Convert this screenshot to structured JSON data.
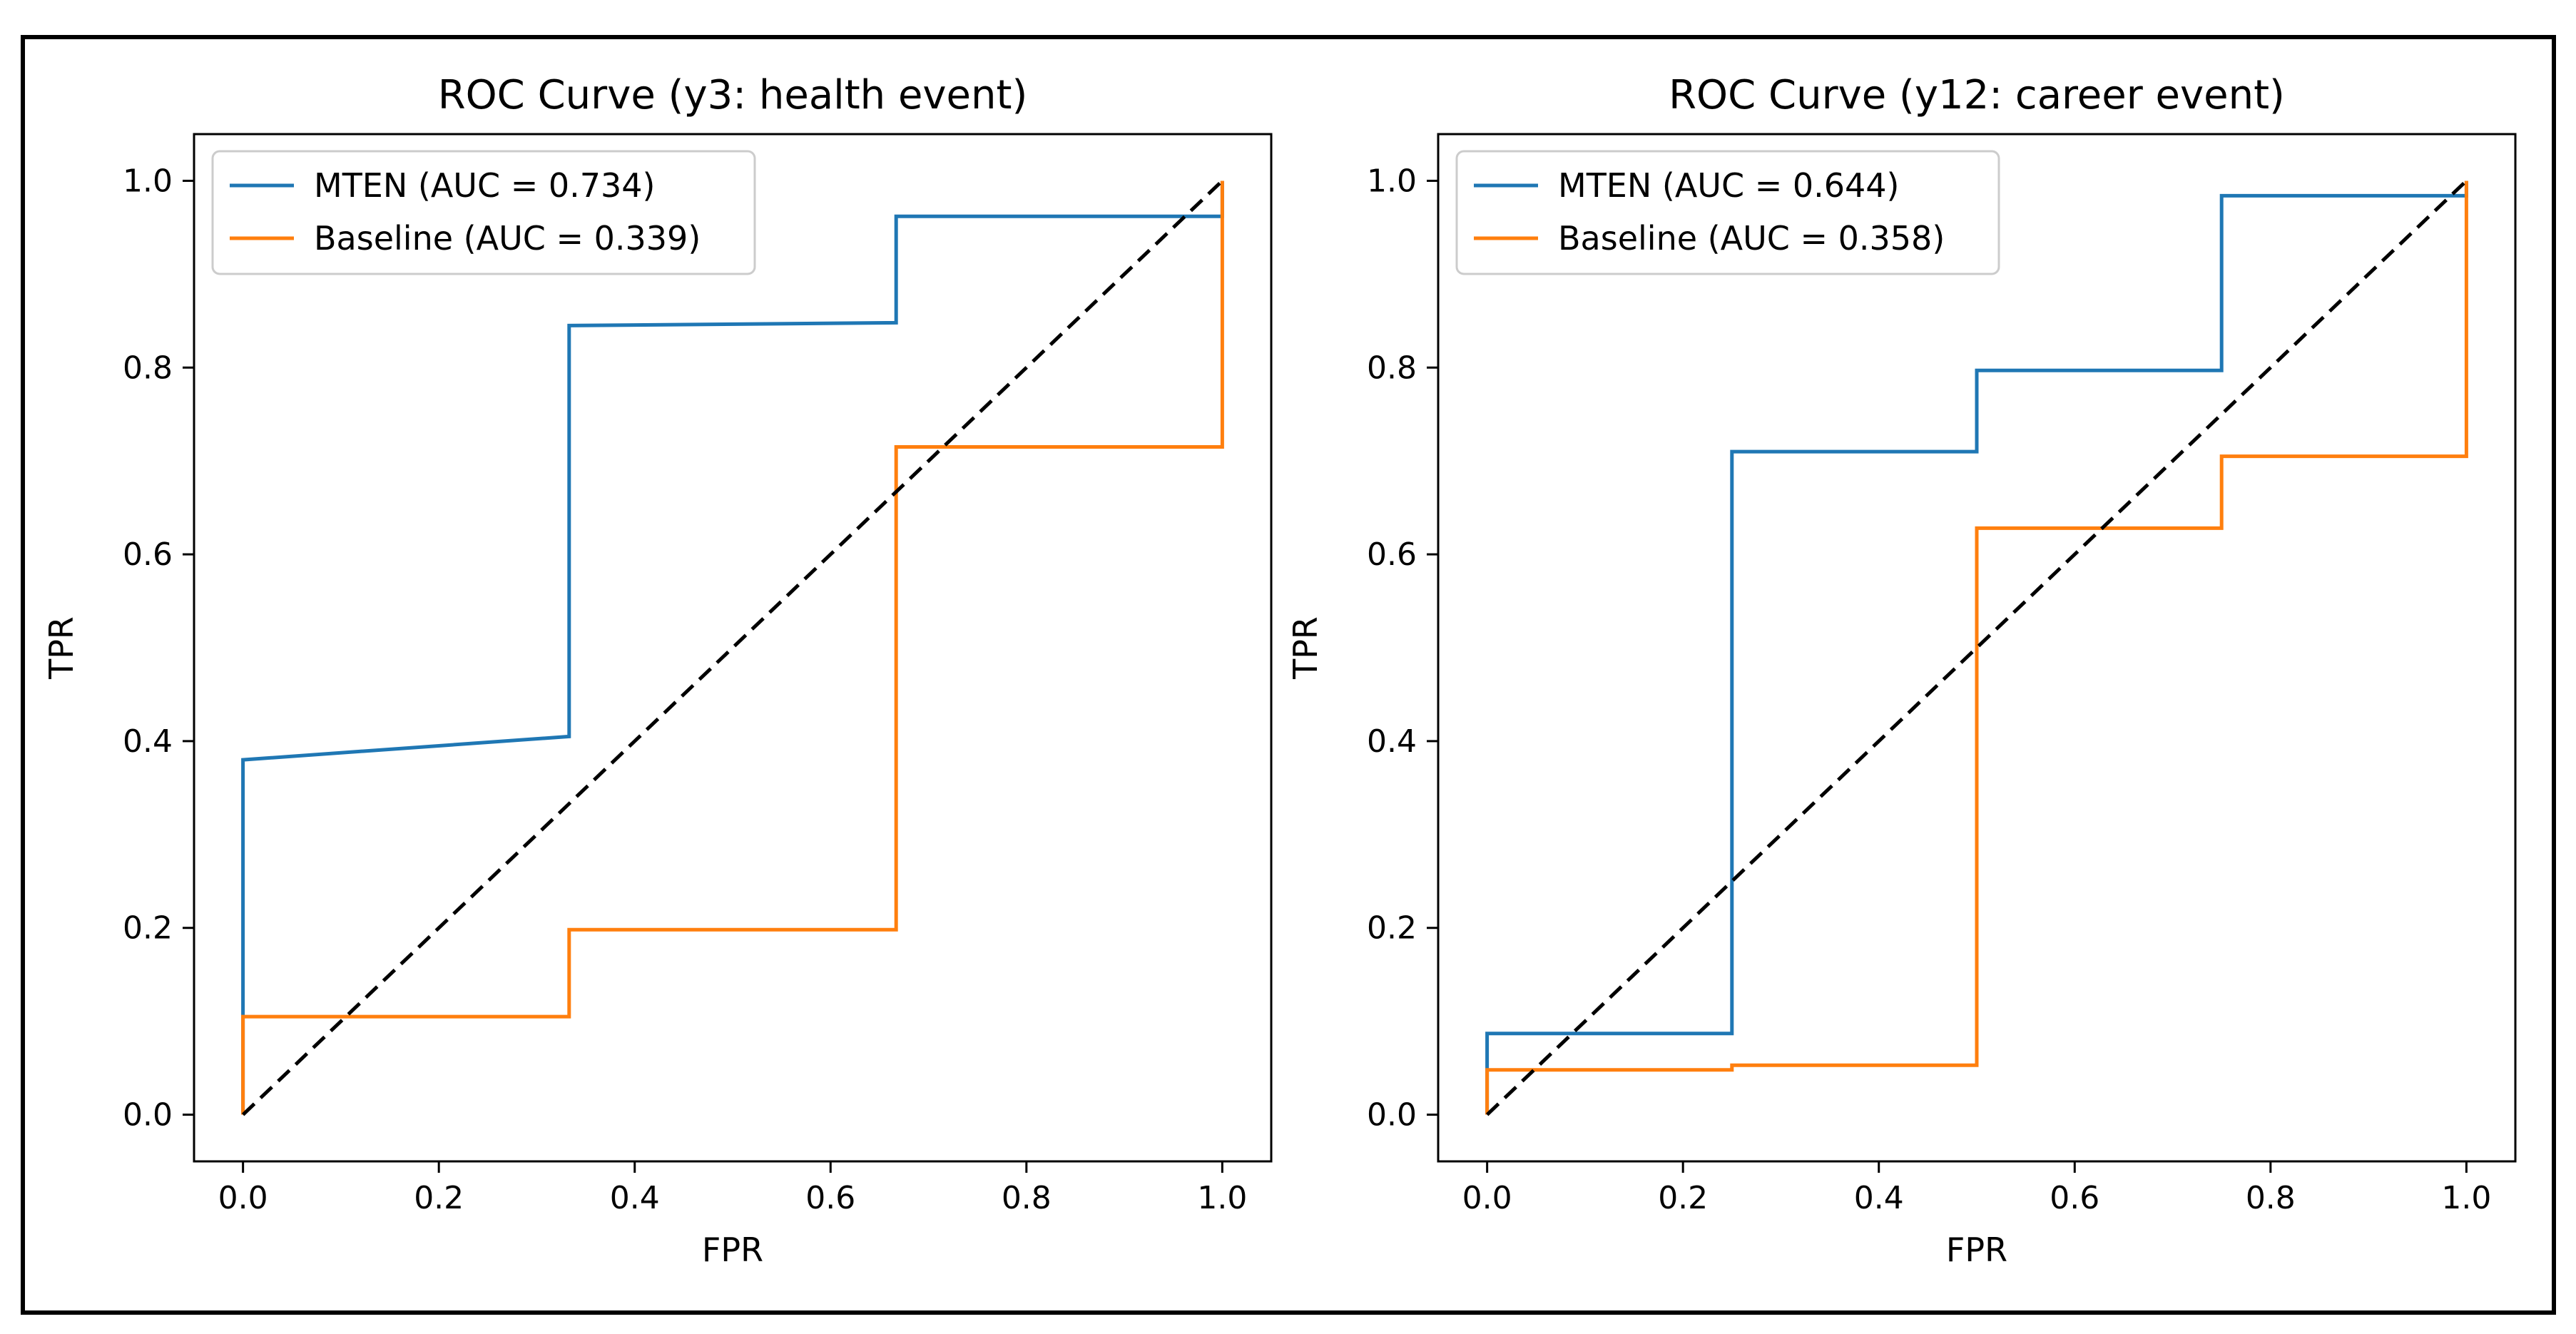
{
  "chart_data": [
    {
      "type": "line",
      "title": "ROC Curve (y3: health event)",
      "xlabel": "FPR",
      "ylabel": "TPR",
      "xlim": [
        -0.05,
        1.05
      ],
      "ylim": [
        -0.05,
        1.05
      ],
      "xticks": [
        "0.0",
        "0.2",
        "0.4",
        "0.6",
        "0.8",
        "1.0"
      ],
      "yticks": [
        "0.0",
        "0.2",
        "0.4",
        "0.6",
        "0.8",
        "1.0"
      ],
      "legend_position": "top-left",
      "series": [
        {
          "name": "MTEN (AUC = 0.734)",
          "color": "#1f77b4",
          "x": [
            0,
            0,
            0,
            0.333,
            0.333,
            0.667,
            0.667,
            1,
            1
          ],
          "y": [
            0,
            0.1,
            0.38,
            0.405,
            0.845,
            0.848,
            0.962,
            0.962,
            1.0
          ]
        },
        {
          "name": "Baseline (AUC = 0.339)",
          "color": "#ff7f0e",
          "x": [
            0,
            0,
            0.333,
            0.333,
            0.667,
            0.667,
            1,
            1
          ],
          "y": [
            0,
            0.105,
            0.105,
            0.198,
            0.198,
            0.715,
            0.715,
            1.0
          ]
        }
      ],
      "reference_line": {
        "name": "chance",
        "color": "#000000",
        "style": "dashed",
        "x": [
          0,
          1
        ],
        "y": [
          0,
          1
        ]
      }
    },
    {
      "type": "line",
      "title": "ROC Curve (y12: career event)",
      "xlabel": "FPR",
      "ylabel": "TPR",
      "xlim": [
        -0.05,
        1.05
      ],
      "ylim": [
        -0.05,
        1.05
      ],
      "xticks": [
        "0.0",
        "0.2",
        "0.4",
        "0.6",
        "0.8",
        "1.0"
      ],
      "yticks": [
        "0.0",
        "0.2",
        "0.4",
        "0.6",
        "0.8",
        "1.0"
      ],
      "legend_position": "top-left",
      "series": [
        {
          "name": "MTEN (AUC = 0.644)",
          "color": "#1f77b4",
          "x": [
            0,
            0,
            0.25,
            0.25,
            0.5,
            0.5,
            0.75,
            0.75,
            1,
            1
          ],
          "y": [
            0,
            0.087,
            0.087,
            0.71,
            0.71,
            0.797,
            0.797,
            0.984,
            0.984,
            1.0
          ]
        },
        {
          "name": "Baseline (AUC = 0.358)",
          "color": "#ff7f0e",
          "x": [
            0,
            0,
            0.25,
            0.25,
            0.5,
            0.5,
            0.75,
            0.75,
            1,
            1
          ],
          "y": [
            0,
            0.048,
            0.048,
            0.053,
            0.053,
            0.628,
            0.628,
            0.705,
            0.705,
            1.0
          ]
        }
      ],
      "reference_line": {
        "name": "chance",
        "color": "#000000",
        "style": "dashed",
        "x": [
          0,
          1
        ],
        "y": [
          0,
          1
        ]
      }
    }
  ]
}
